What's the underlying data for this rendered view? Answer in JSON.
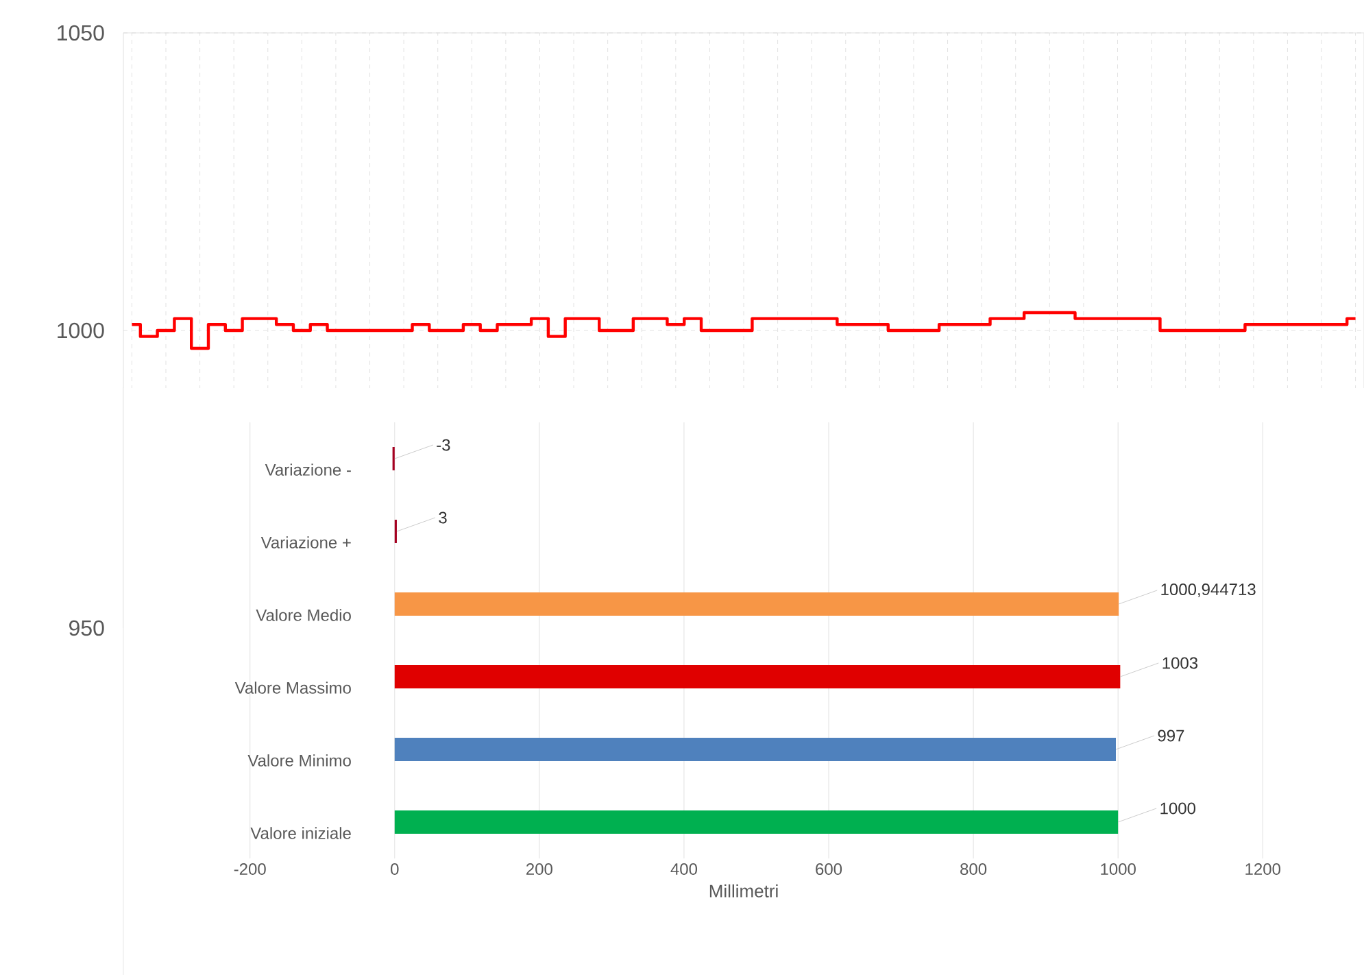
{
  "chart_data": [
    {
      "type": "step",
      "categories": [
        null,
        null,
        null,
        null,
        null,
        null,
        null,
        null,
        null,
        null,
        null,
        null,
        null,
        null,
        null,
        null,
        null,
        null,
        null,
        null,
        null,
        null,
        null,
        null,
        null,
        null,
        null,
        null,
        null,
        null,
        null,
        null,
        null,
        null,
        null,
        null,
        null,
        null,
        null,
        null,
        null,
        null,
        null,
        null,
        null,
        null,
        null,
        null,
        null,
        null,
        null,
        null,
        null,
        null,
        null,
        null,
        null,
        null,
        null,
        null,
        null,
        null,
        null,
        null,
        null,
        null,
        null,
        null,
        null,
        null,
        null,
        null,
        null
      ],
      "series": [
        {
          "color": "#ff0000",
          "values": [
            1001,
            999,
            1000,
            1002,
            997,
            1001,
            1000,
            1002,
            1002,
            1001,
            1000,
            1001,
            1000,
            1000,
            1000,
            1000,
            1000,
            1001,
            1000,
            1000,
            1001,
            1000,
            1001,
            1001,
            1002,
            999,
            1002,
            1002,
            1000,
            1000,
            1002,
            1002,
            1001,
            1002,
            1000,
            1000,
            1000,
            1002,
            1002,
            1002,
            1002,
            1002,
            1001,
            1001,
            1001,
            1000,
            1000,
            1000,
            1001,
            1001,
            1001,
            1002,
            1002,
            1003,
            1003,
            1003,
            1002,
            1002,
            1002,
            1002,
            1002,
            1000,
            1000,
            1000,
            1000,
            1000,
            1001,
            1001,
            1001,
            1001,
            1001,
            1001,
            1002
          ]
        }
      ],
      "ylim": [
        950,
        1050
      ],
      "yticks": [
        950,
        1000,
        1050
      ],
      "grid": true
    },
    {
      "type": "bar",
      "orientation": "horizontal",
      "xlabel": "Millimetri",
      "categories": [
        "Variazione -",
        "Variazione +",
        "Valore Medio",
        "Valore Massimo",
        "Valore Minimo",
        "Valore iniziale"
      ],
      "values": [
        -3,
        3,
        1000.944713,
        1003,
        997,
        1000
      ],
      "colors": [
        "#a50021",
        "#a50021",
        "#f79646",
        "#e00000",
        "#4f81bd",
        "#00b050"
      ],
      "value_labels": [
        "-3",
        "3",
        "1000,944713",
        "1003",
        "997",
        "1000"
      ],
      "xlim": [
        -375,
        1340
      ],
      "xticks": [
        -200,
        0,
        200,
        400,
        600,
        800,
        1000,
        1200
      ],
      "grid": "x"
    }
  ]
}
